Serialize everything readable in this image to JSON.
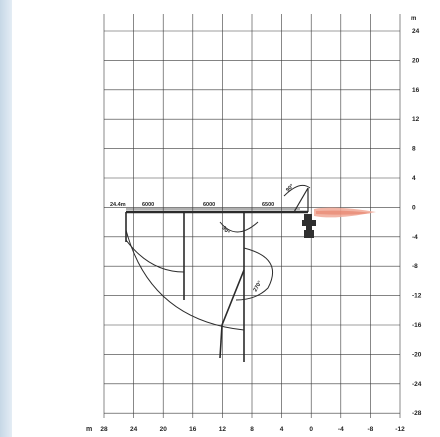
{
  "colors": {
    "grid": "#3a3a3a",
    "structure": "#2b2b2b",
    "hook": "#2f2f2f",
    "fluid_jet": "#f0a896",
    "side_band": "#c6d7e6",
    "background": "#ffffff"
  },
  "axis": {
    "x_unit": "m",
    "y_unit": "m",
    "x_ticks": [
      "28",
      "24",
      "20",
      "16",
      "12",
      "8",
      "4",
      "0",
      "-4",
      "-8",
      "-12"
    ],
    "y_ticks": [
      "24",
      "20",
      "16",
      "12",
      "8",
      "4",
      "0",
      "-4",
      "-8",
      "-12",
      "-16",
      "-20",
      "-24",
      "-28"
    ]
  },
  "annotations": {
    "boom_length": "24.4m",
    "section_1": "6000",
    "section_2": "6000",
    "section_3": "6500",
    "angle_top": "90°",
    "angle_mid": "90°",
    "angle_lower": "270°"
  },
  "icons": [
    "crane-hook-icon",
    "water-jet-icon"
  ]
}
